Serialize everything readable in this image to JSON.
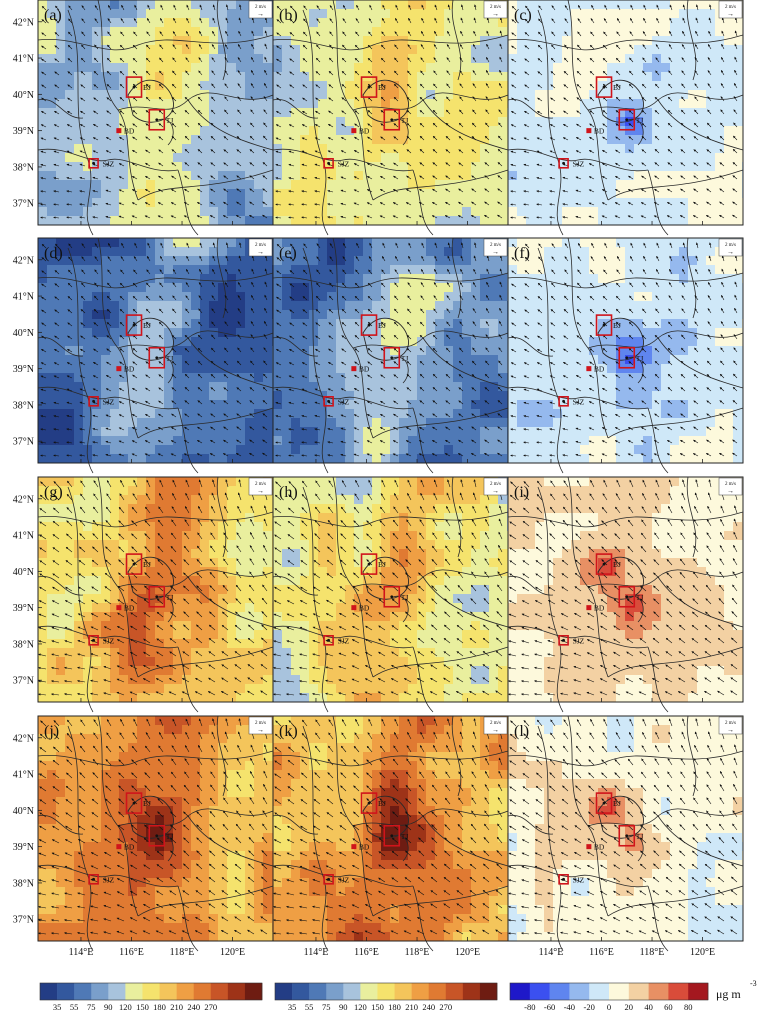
{
  "chart_data": {
    "type": "heatmap",
    "grid": {
      "rows": 4,
      "cols": 3
    },
    "lat_ticks": [
      "42°N",
      "41°N",
      "40°N",
      "39°N",
      "38°N",
      "37°N"
    ],
    "lat_values": [
      42,
      41,
      40,
      39,
      38,
      37
    ],
    "lon_ticks": [
      "114°E",
      "116°E",
      "118°E",
      "120°E"
    ],
    "lon_values": [
      114,
      116,
      118,
      120
    ],
    "xlim": [
      112.3,
      121.6
    ],
    "ylim": [
      36.4,
      42.6
    ],
    "wind_reference": {
      "label": "2 m/s",
      "symbol": "→"
    },
    "cities": [
      {
        "code": "BJ",
        "lon": 116.1,
        "lat": 40.2,
        "boxed": true
      },
      {
        "code": "TJ",
        "lon": 117.0,
        "lat": 39.3,
        "boxed": true
      },
      {
        "code": "BD",
        "lon": 115.5,
        "lat": 39.0,
        "boxed": false
      },
      {
        "code": "SJZ",
        "lon": 114.5,
        "lat": 38.1,
        "boxed": true
      }
    ],
    "panels": [
      {
        "label": "(a)",
        "kind": "conc",
        "level": 0.3
      },
      {
        "label": "(b)",
        "kind": "conc",
        "level": 0.38
      },
      {
        "label": "(c)",
        "kind": "diff",
        "level": -0.05
      },
      {
        "label": "(d)",
        "kind": "conc",
        "level": 0.12
      },
      {
        "label": "(e)",
        "kind": "conc",
        "level": 0.18
      },
      {
        "label": "(f)",
        "kind": "diff",
        "level": -0.08
      },
      {
        "label": "(g)",
        "kind": "conc",
        "level": 0.5
      },
      {
        "label": "(h)",
        "kind": "conc",
        "level": 0.42
      },
      {
        "label": "(i)",
        "kind": "diff",
        "level": 0.15
      },
      {
        "label": "(j)",
        "kind": "conc",
        "level": 0.62
      },
      {
        "label": "(k)",
        "kind": "conc",
        "level": 0.6
      },
      {
        "label": "(l)",
        "kind": "diff",
        "level": 0.05
      }
    ],
    "colorbars": [
      {
        "name": "concentration",
        "ticks": [
          "35",
          "55",
          "75",
          "90",
          "120",
          "150",
          "180",
          "210",
          "240",
          "270"
        ],
        "colors": [
          "#233d85",
          "#33589e",
          "#4f79b6",
          "#7a9fcb",
          "#a8c3dd",
          "#e9ef9e",
          "#f5e36d",
          "#f4c55b",
          "#ef9f44",
          "#e07a32",
          "#c85527",
          "#9e3318",
          "#6e1c12"
        ]
      },
      {
        "name": "difference",
        "ticks": [
          "-80",
          "-60",
          "-40",
          "-20",
          "0",
          "20",
          "40",
          "60",
          "80"
        ],
        "colors": [
          "#1e18c9",
          "#3b50f0",
          "#5f85ef",
          "#95b9ee",
          "#cfe8f8",
          "#fdf9dc",
          "#f3d1a3",
          "#e89064",
          "#d94c3a",
          "#a4181f"
        ],
        "unit_main": "μg m",
        "unit_exp": "-3"
      }
    ]
  }
}
